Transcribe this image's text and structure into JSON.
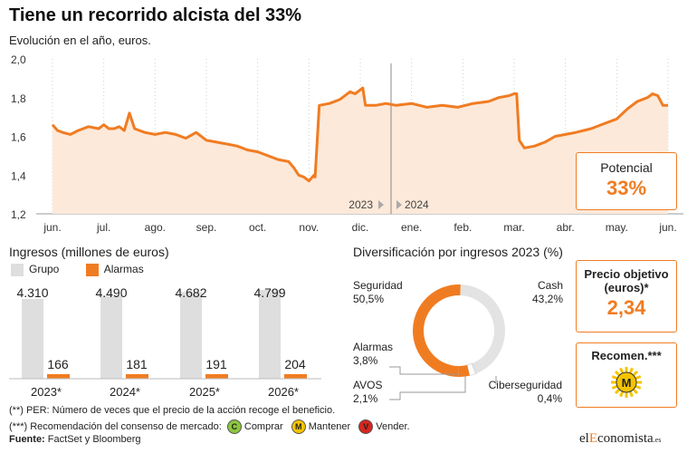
{
  "header": {
    "title": "Tiene un recorrido alcista del 33%",
    "subtitle": "Evolución en el año, euros."
  },
  "potential": {
    "label": "Potencial",
    "value": "33%"
  },
  "year_markers": {
    "left": "2023",
    "right": "2024"
  },
  "revenue": {
    "title": "Ingresos (millones de euros)",
    "legend_group": "Grupo",
    "legend_alarms": "Alarmas"
  },
  "diversification": {
    "title": "Diversificación por ingresos 2023 (%)",
    "labels": [
      {
        "name": "Seguridad",
        "value": "50,5%"
      },
      {
        "name": "Cash",
        "value": "43,2%"
      },
      {
        "name": "Alarmas",
        "value": "3,8%"
      },
      {
        "name": "AVOS",
        "value": "2,1%"
      },
      {
        "name": "Ciberseguridad",
        "value": "0,4%"
      }
    ]
  },
  "target_price": {
    "label_line1": "Precio objetivo",
    "label_line2": "(euros)*",
    "value": "2,34"
  },
  "recommendation": {
    "label": "Recomen.***",
    "badge": "M"
  },
  "footnotes": {
    "per": "(**) PER: Número de veces que el precio de la acción recoge el beneficio.",
    "rec_prefix": "(***) Recomendación del consenso de mercado:",
    "buy_badge": "C",
    "buy": "Comprar",
    "hold_badge": "M",
    "hold": "Mantener",
    "sell_badge": "V",
    "sell": "Vender.",
    "source_label": "Fuente:",
    "source": "FactSet y Bloomberg"
  },
  "brand": {
    "name_pre": "el",
    "name_hl": "E",
    "name_post": "conomista",
    "suffix": ".es"
  },
  "colors": {
    "accent": "#f07c22",
    "area": "#fde9d9",
    "gray_bar": "#dedede",
    "ring_gray": "#e3e3e3",
    "buy": "#8cc63f",
    "hold": "#f5c400",
    "sell": "#d7261e"
  },
  "chart_data": [
    {
      "type": "area",
      "title": "Tiene un recorrido alcista del 33%",
      "subtitle": "Evolución en el año, euros.",
      "x_tick_labels": [
        "jun.",
        "jul.",
        "ago.",
        "sep.",
        "oct.",
        "nov.",
        "dic.",
        "ene.",
        "feb.",
        "mar.",
        "abr.",
        "may.",
        "jun."
      ],
      "y_ticks": [
        1.2,
        1.4,
        1.6,
        1.8,
        2.0
      ],
      "y_tick_labels": [
        "1,2",
        "1,4",
        "1,6",
        "1,8",
        "2,0"
      ],
      "ylim": [
        1.2,
        2.0
      ],
      "x_range_months": [
        0,
        12.3
      ],
      "grid": "vertical-dotted",
      "series": [
        {
          "x": [
            0,
            0.1,
            0.2,
            0.35,
            0.5,
            0.7,
            0.9,
            1.0,
            1.1,
            1.2,
            1.3,
            1.4,
            1.5,
            1.6,
            1.7,
            1.8,
            2.0,
            2.2,
            2.4,
            2.6,
            2.8,
            3.0,
            3.2,
            3.4,
            3.6,
            3.8,
            4.0,
            4.2,
            4.4,
            4.6,
            4.7,
            4.8,
            4.9,
            5.0,
            5.1,
            5.12,
            5.2,
            5.4,
            5.6,
            5.8,
            5.9,
            6.0,
            6.05,
            6.1,
            6.3,
            6.5,
            6.7,
            7.0,
            7.3,
            7.6,
            7.9,
            8.2,
            8.5,
            8.7,
            8.9,
            9.0,
            9.05,
            9.1,
            9.2,
            9.4,
            9.6,
            9.8,
            10.0,
            10.2,
            10.5,
            10.8,
            11.0,
            11.2,
            11.4,
            11.6,
            11.7,
            11.8,
            11.9,
            12.0
          ],
          "y": [
            1.66,
            1.63,
            1.62,
            1.61,
            1.63,
            1.65,
            1.64,
            1.66,
            1.64,
            1.64,
            1.65,
            1.63,
            1.72,
            1.64,
            1.63,
            1.62,
            1.61,
            1.62,
            1.61,
            1.59,
            1.62,
            1.58,
            1.57,
            1.56,
            1.55,
            1.53,
            1.52,
            1.5,
            1.48,
            1.47,
            1.44,
            1.4,
            1.39,
            1.37,
            1.4,
            1.39,
            1.76,
            1.77,
            1.79,
            1.83,
            1.82,
            1.84,
            1.85,
            1.76,
            1.76,
            1.77,
            1.76,
            1.77,
            1.75,
            1.76,
            1.75,
            1.77,
            1.78,
            1.8,
            1.81,
            1.82,
            1.82,
            1.58,
            1.54,
            1.55,
            1.57,
            1.6,
            1.61,
            1.62,
            1.64,
            1.67,
            1.69,
            1.74,
            1.78,
            1.8,
            1.82,
            1.81,
            1.76,
            1.76
          ]
        }
      ]
    },
    {
      "type": "bar",
      "title": "Ingresos (millones de euros)",
      "categories": [
        "2023*",
        "2024*",
        "2025*",
        "2026*"
      ],
      "series": [
        {
          "name": "Grupo",
          "values": [
            4310,
            4490,
            4682,
            4799
          ],
          "labels": [
            "4.310",
            "4.490",
            "4.682",
            "4.799"
          ]
        },
        {
          "name": "Alarmas",
          "values": [
            166,
            181,
            191,
            204
          ],
          "labels": [
            "166",
            "181",
            "191",
            "204"
          ]
        }
      ],
      "ylim": [
        0,
        5000
      ]
    },
    {
      "type": "pie",
      "title": "Diversificación por ingresos 2023 (%)",
      "categories": [
        "Seguridad",
        "Cash",
        "Alarmas",
        "AVOS",
        "Ciberseguridad"
      ],
      "values": [
        50.5,
        43.2,
        3.8,
        2.1,
        0.4
      ],
      "colors": [
        "#f07c22",
        "#e3e3e3",
        "#f07c22",
        "#ffffff",
        "#ffffff"
      ]
    }
  ]
}
